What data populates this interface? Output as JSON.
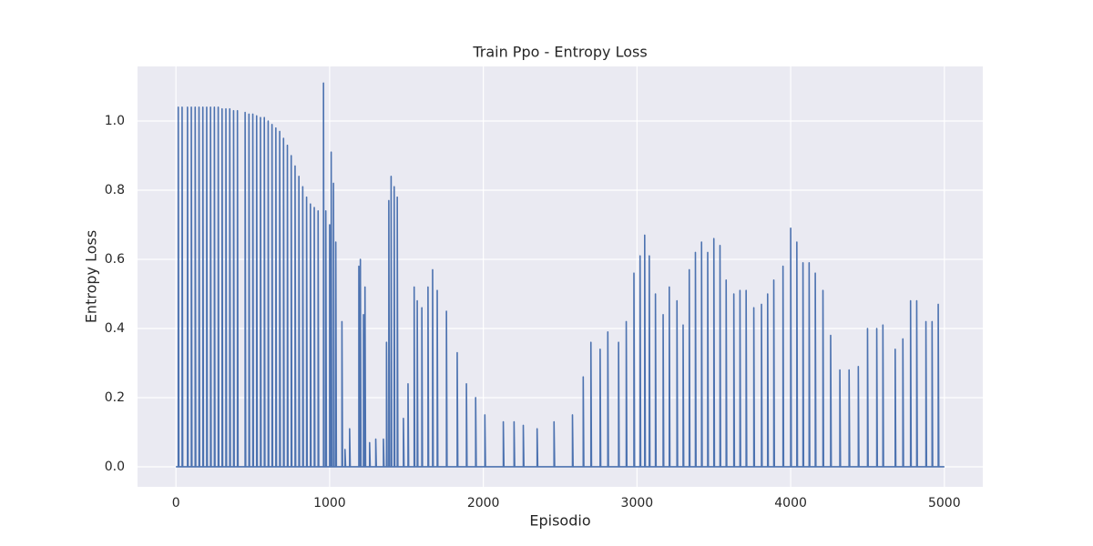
{
  "chart_data": {
    "type": "line",
    "title": "Train Ppo - Entropy Loss",
    "xlabel": "Episodio",
    "ylabel": "Entropy Loss",
    "xlim": [
      -250,
      5250
    ],
    "ylim": [
      -0.058,
      1.158
    ],
    "xticks": [
      0,
      1000,
      2000,
      3000,
      4000,
      5000
    ],
    "yticks": [
      {
        "value": 0,
        "label": "0.0"
      },
      0.2,
      0.4,
      0.6,
      0.8,
      {
        "value": 1,
        "label": "1.0"
      }
    ],
    "grid": true,
    "series": [
      {
        "name": "Entropy Loss",
        "color": "#4c72b0",
        "x": [
          0,
          15,
          15,
          19,
          40,
          40,
          44,
          75,
          75,
          79,
          100,
          100,
          104,
          125,
          125,
          129,
          150,
          150,
          154,
          175,
          175,
          179,
          200,
          200,
          204,
          225,
          225,
          229,
          250,
          250,
          254,
          275,
          275,
          279,
          300,
          300,
          304,
          325,
          325,
          329,
          350,
          350,
          354,
          375,
          375,
          379,
          400,
          400,
          404,
          450,
          450,
          454,
          475,
          475,
          479,
          500,
          500,
          504,
          525,
          525,
          529,
          550,
          550,
          554,
          575,
          575,
          579,
          600,
          600,
          604,
          625,
          625,
          629,
          650,
          650,
          654,
          675,
          675,
          679,
          700,
          700,
          704,
          725,
          725,
          729,
          750,
          750,
          754,
          775,
          775,
          779,
          800,
          800,
          804,
          825,
          825,
          829,
          850,
          850,
          854,
          875,
          875,
          879,
          900,
          900,
          904,
          925,
          925,
          929,
          960,
          960,
          964,
          975,
          975,
          979,
          1000,
          1000,
          1004,
          1010,
          1010,
          1014,
          1025,
          1025,
          1029,
          1040,
          1040,
          1044,
          1080,
          1080,
          1084,
          1100,
          1100,
          1104,
          1130,
          1130,
          1134,
          1190,
          1190,
          1194,
          1200,
          1200,
          1204,
          1220,
          1220,
          1224,
          1230,
          1230,
          1234,
          1260,
          1260,
          1264,
          1300,
          1300,
          1304,
          1350,
          1350,
          1354,
          1370,
          1370,
          1374,
          1385,
          1385,
          1389,
          1400,
          1400,
          1404,
          1420,
          1420,
          1424,
          1440,
          1440,
          1444,
          1480,
          1480,
          1484,
          1510,
          1510,
          1514,
          1550,
          1550,
          1554,
          1570,
          1570,
          1574,
          1600,
          1600,
          1604,
          1640,
          1640,
          1644,
          1670,
          1670,
          1674,
          1700,
          1700,
          1704,
          1760,
          1760,
          1764,
          1830,
          1830,
          1834,
          1890,
          1890,
          1894,
          1950,
          1950,
          1954,
          2010,
          2010,
          2014,
          2130,
          2130,
          2134,
          2200,
          2200,
          2204,
          2260,
          2260,
          2264,
          2350,
          2350,
          2354,
          2460,
          2460,
          2464,
          2580,
          2580,
          2584,
          2650,
          2650,
          2654,
          2700,
          2700,
          2704,
          2760,
          2760,
          2764,
          2810,
          2810,
          2814,
          2880,
          2880,
          2884,
          2930,
          2930,
          2934,
          2980,
          2980,
          2984,
          3020,
          3020,
          3024,
          3050,
          3050,
          3054,
          3080,
          3080,
          3084,
          3120,
          3120,
          3124,
          3170,
          3170,
          3174,
          3210,
          3210,
          3214,
          3260,
          3260,
          3264,
          3300,
          3300,
          3304,
          3340,
          3340,
          3344,
          3380,
          3380,
          3384,
          3420,
          3420,
          3424,
          3460,
          3460,
          3464,
          3500,
          3500,
          3504,
          3540,
          3540,
          3544,
          3580,
          3580,
          3584,
          3630,
          3630,
          3634,
          3670,
          3670,
          3674,
          3710,
          3710,
          3714,
          3760,
          3760,
          3764,
          3810,
          3810,
          3814,
          3850,
          3850,
          3854,
          3890,
          3890,
          3894,
          3950,
          3950,
          3954,
          4000,
          4000,
          4004,
          4040,
          4040,
          4044,
          4080,
          4080,
          4084,
          4120,
          4120,
          4124,
          4160,
          4160,
          4164,
          4210,
          4210,
          4214,
          4260,
          4260,
          4264,
          4320,
          4320,
          4324,
          4380,
          4380,
          4384,
          4440,
          4440,
          4444,
          4500,
          4500,
          4504,
          4560,
          4560,
          4564,
          4600,
          4600,
          4604,
          4680,
          4680,
          4684,
          4730,
          4730,
          4734,
          4780,
          4780,
          4784,
          4820,
          4820,
          4824,
          4880,
          4880,
          4884,
          4920,
          4920,
          4924,
          4960,
          4960,
          4964,
          5000
        ],
        "values": [
          0,
          0,
          1.04,
          0,
          0,
          1.04,
          0,
          0,
          1.04,
          0,
          0,
          1.04,
          0,
          0,
          1.04,
          0,
          0,
          1.04,
          0,
          0,
          1.04,
          0,
          0,
          1.04,
          0,
          0,
          1.04,
          0,
          0,
          1.04,
          0,
          0,
          1.04,
          0,
          0,
          1.035,
          0,
          0,
          1.035,
          0,
          0,
          1.035,
          0,
          0,
          1.03,
          0,
          0,
          1.03,
          0,
          0,
          1.025,
          0,
          0,
          1.02,
          0,
          0,
          1.02,
          0,
          0,
          1.015,
          0,
          0,
          1.01,
          0,
          0,
          1.01,
          0,
          0,
          1.0,
          0,
          0,
          0.99,
          0,
          0,
          0.98,
          0,
          0,
          0.97,
          0,
          0,
          0.95,
          0,
          0,
          0.93,
          0,
          0,
          0.9,
          0,
          0,
          0.87,
          0,
          0,
          0.84,
          0,
          0,
          0.81,
          0,
          0,
          0.78,
          0,
          0,
          0.76,
          0,
          0,
          0.75,
          0,
          0,
          0.74,
          0,
          0,
          1.11,
          0,
          0,
          0.74,
          0,
          0,
          0.7,
          0,
          0,
          0.91,
          0,
          0,
          0.82,
          0,
          0,
          0.65,
          0,
          0,
          0.42,
          0,
          0,
          0.05,
          0,
          0,
          0.11,
          0,
          0,
          0.58,
          0,
          0,
          0.6,
          0,
          0,
          0.44,
          0,
          0,
          0.52,
          0,
          0,
          0.07,
          0,
          0,
          0.08,
          0,
          0,
          0.08,
          0,
          0,
          0.36,
          0,
          0,
          0.77,
          0,
          0,
          0.84,
          0,
          0,
          0.81,
          0,
          0,
          0.78,
          0,
          0,
          0.14,
          0,
          0,
          0.24,
          0,
          0,
          0.52,
          0,
          0,
          0.48,
          0,
          0,
          0.46,
          0,
          0,
          0.52,
          0,
          0,
          0.57,
          0,
          0,
          0.51,
          0,
          0,
          0.45,
          0,
          0,
          0.33,
          0,
          0,
          0.24,
          0,
          0,
          0.2,
          0,
          0,
          0.15,
          0,
          0,
          0.13,
          0,
          0,
          0.13,
          0,
          0,
          0.12,
          0,
          0,
          0.11,
          0,
          0,
          0.13,
          0,
          0,
          0.15,
          0,
          0,
          0.26,
          0,
          0,
          0.36,
          0,
          0,
          0.34,
          0,
          0,
          0.39,
          0,
          0,
          0.36,
          0,
          0,
          0.42,
          0,
          0,
          0.56,
          0,
          0,
          0.61,
          0,
          0,
          0.67,
          0,
          0,
          0.61,
          0,
          0,
          0.5,
          0,
          0,
          0.44,
          0,
          0,
          0.52,
          0,
          0,
          0.48,
          0,
          0,
          0.41,
          0,
          0,
          0.57,
          0,
          0,
          0.62,
          0,
          0,
          0.65,
          0,
          0,
          0.62,
          0,
          0,
          0.66,
          0,
          0,
          0.64,
          0,
          0,
          0.54,
          0,
          0,
          0.5,
          0,
          0,
          0.51,
          0,
          0,
          0.51,
          0,
          0,
          0.46,
          0,
          0,
          0.47,
          0,
          0,
          0.5,
          0,
          0,
          0.54,
          0,
          0,
          0.58,
          0,
          0,
          0.69,
          0,
          0,
          0.65,
          0,
          0,
          0.59,
          0,
          0,
          0.59,
          0,
          0,
          0.56,
          0,
          0,
          0.51,
          0,
          0,
          0.38,
          0,
          0,
          0.28,
          0,
          0,
          0.28,
          0,
          0,
          0.29,
          0,
          0,
          0.4,
          0,
          0,
          0.4,
          0,
          0,
          0.41,
          0,
          0,
          0.34,
          0,
          0,
          0.37,
          0,
          0,
          0.48,
          0,
          0,
          0.48,
          0,
          0,
          0.42,
          0,
          0,
          0.42,
          0,
          0,
          0.47,
          0,
          0
        ]
      }
    ]
  }
}
